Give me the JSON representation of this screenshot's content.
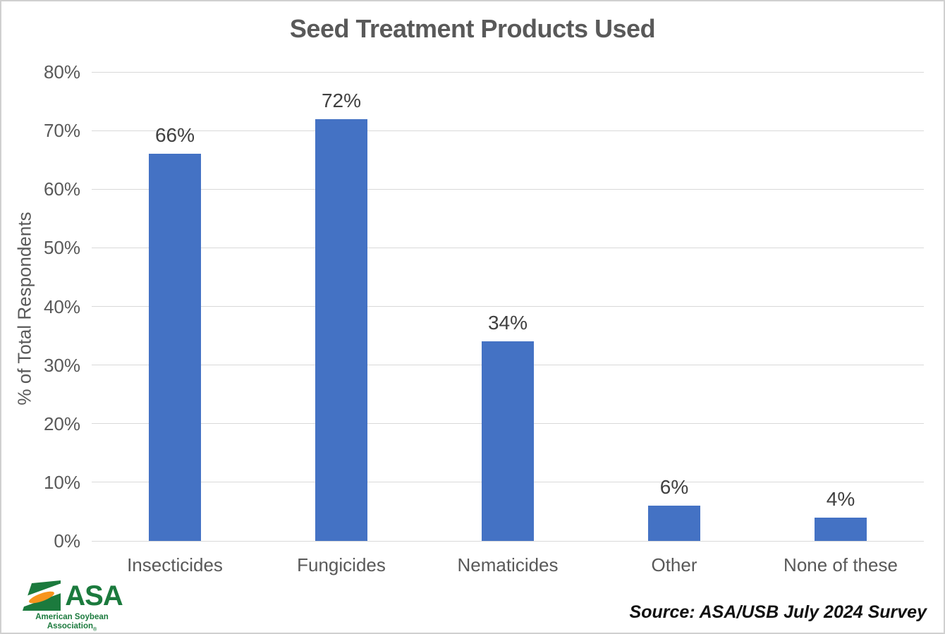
{
  "title": "Seed Treatment Products Used",
  "source": "Source: ASA/USB July 2024 Survey",
  "logo": {
    "acronym": "ASA",
    "line1": "American Soybean",
    "line2": "Association",
    "registered": "®",
    "green": "#1b7a3d",
    "orange": "#f7941d"
  },
  "colors": {
    "bar": "#4472c4",
    "grid": "#d9d9d9",
    "axis_text": "#595959",
    "title_text": "#595959",
    "value_label_text": "#404040"
  },
  "chart_data": {
    "type": "bar",
    "categories": [
      "Insecticides",
      "Fungicides",
      "Nematicides",
      "Other",
      "None of these"
    ],
    "values": [
      66,
      72,
      34,
      6,
      4
    ],
    "value_labels": [
      "66%",
      "72%",
      "34%",
      "6%",
      "4%"
    ],
    "title": "Seed Treatment Products Used",
    "xlabel": "",
    "ylabel": "% of Total Respondents",
    "ylim": [
      0,
      80
    ],
    "ytick_step": 10,
    "yticks": [
      "0%",
      "10%",
      "20%",
      "30%",
      "40%",
      "50%",
      "60%",
      "70%",
      "80%"
    ],
    "grid": true,
    "legend": false,
    "bar_color": "#4472c4"
  }
}
